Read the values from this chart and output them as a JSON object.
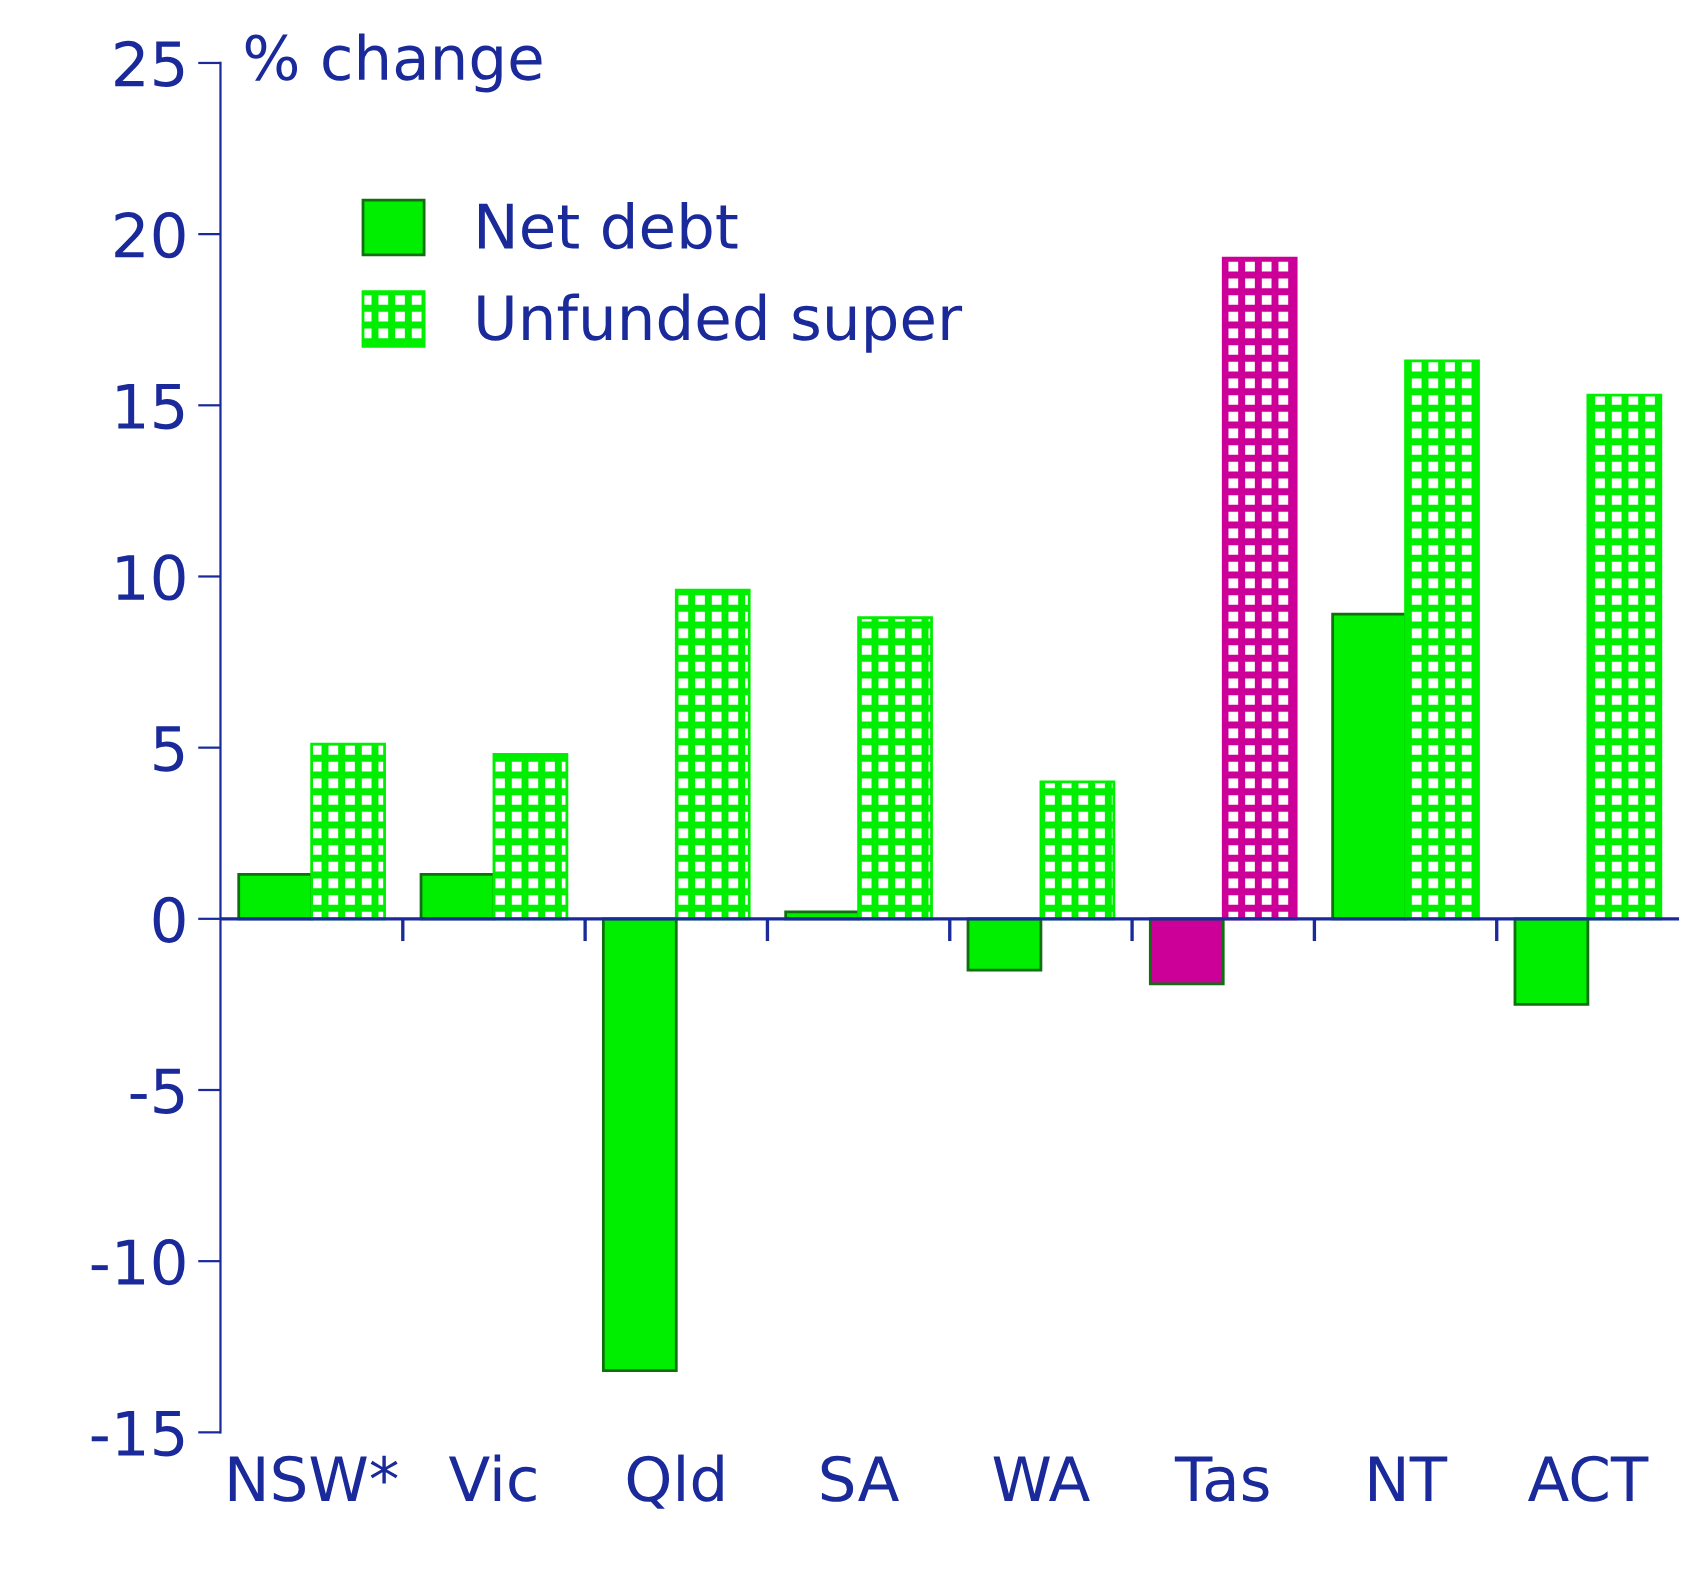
{
  "chart_data": {
    "type": "bar",
    "ylabel": "% change",
    "categories": [
      "NSW*",
      "Vic",
      "Qld",
      "SA",
      "WA",
      "Tas",
      "NT",
      "ACT"
    ],
    "series": [
      {
        "name": "Net debt",
        "color": "#00ee00",
        "colors": [
          "#00ee00",
          "#00ee00",
          "#00ee00",
          "#00ee00",
          "#00ee00",
          "#cc0099",
          "#00ee00",
          "#00ee00"
        ],
        "values": [
          1.3,
          1.3,
          -13.2,
          0.2,
          -1.5,
          -1.9,
          8.9,
          -2.5
        ]
      },
      {
        "name": "Unfunded super",
        "color": "#00ee00",
        "colors": [
          "#00ee00",
          "#00ee00",
          "#00ee00",
          "#00ee00",
          "#00ee00",
          "#cc0099",
          "#00ee00",
          "#00ee00"
        ],
        "values": [
          5.1,
          4.8,
          9.6,
          8.8,
          4.0,
          19.3,
          16.3,
          15.3
        ]
      }
    ],
    "ylim": [
      -15,
      25
    ],
    "yticks": [
      -15,
      -10,
      -5,
      0,
      5,
      10,
      15,
      20,
      25
    ],
    "ref_lines": [
      {
        "axis": "y",
        "value": 0,
        "color": "#1a2a9a"
      }
    ],
    "grid": false,
    "legend": "top left"
  }
}
